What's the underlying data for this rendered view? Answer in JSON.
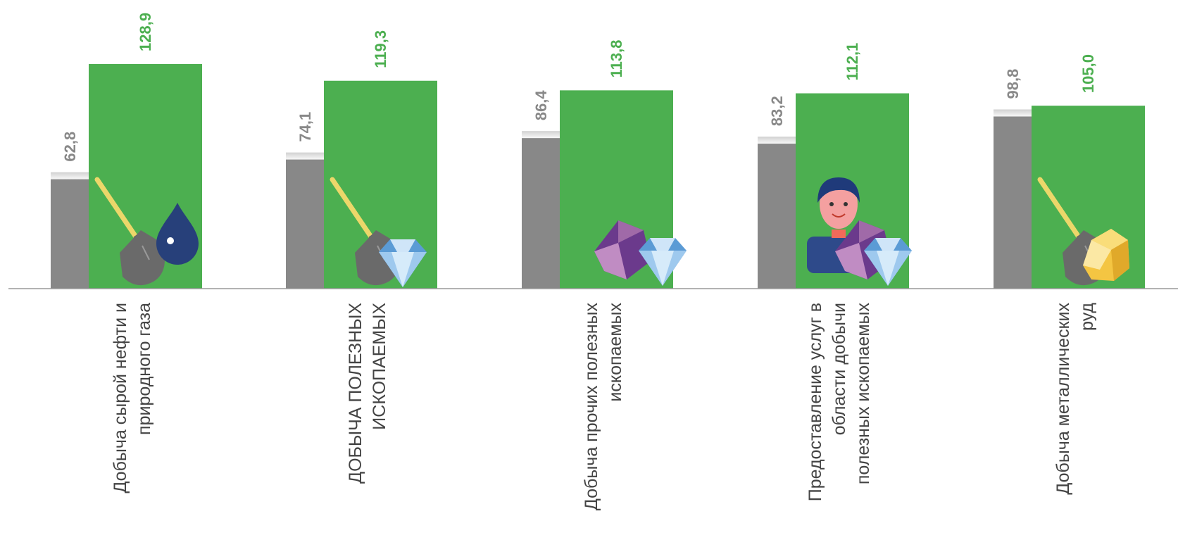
{
  "chart_data": {
    "type": "bar",
    "categories": [
      [
        "Добыча сырой нефти и",
        "природного газа"
      ],
      [
        "ДОБЫЧА ПОЛЕЗНЫХ",
        "ИСКОПАЕМЫХ"
      ],
      [
        "Добыча прочих полезных",
        "ископаемых"
      ],
      [
        "Предоставление услуг в",
        "области добычи",
        "полезных ископаемых"
      ],
      [
        "Добыча металлических",
        "руд"
      ]
    ],
    "series": [
      {
        "values": [
          62.8,
          74.1,
          86.4,
          83.2,
          98.8
        ]
      },
      {
        "values": [
          128.9,
          119.3,
          113.8,
          112.1,
          105.0
        ]
      }
    ],
    "value_labels": [
      [
        "62,8",
        "74,1",
        "86,4",
        "83,2",
        "98,8"
      ],
      [
        "128,9",
        "119,3",
        "113,8",
        "112,1",
        "105,0"
      ]
    ],
    "icons": [
      [
        "shovel-icon",
        "oil-drop-icon"
      ],
      [
        "shovel-icon",
        "diamond-icon"
      ],
      [
        "crystal-icon",
        "diamond-icon"
      ],
      [
        "miner-person-icon",
        "crystal-icon",
        "diamond-icon"
      ],
      [
        "shovel-icon",
        "gold-nugget-icon"
      ]
    ],
    "colors": {
      "series1": "#888888",
      "series2": "#4caf50",
      "label1": "#888888",
      "label2": "#4caf50",
      "baseline": "#999999"
    },
    "ylim": [
      0,
      140
    ],
    "grid": false,
    "legend": "none"
  }
}
